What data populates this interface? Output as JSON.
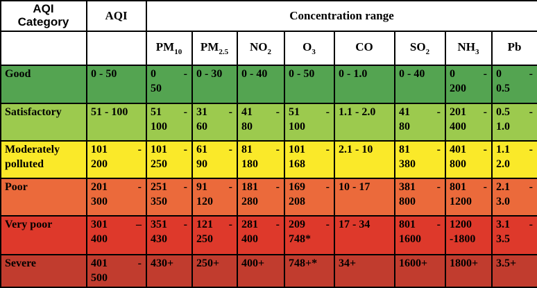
{
  "table": {
    "header": {
      "aqi_category": "AQI\nCategory",
      "aqi": "AQI",
      "concentration_range": "Concentration range"
    },
    "pollutants": [
      {
        "base": "PM",
        "sub": "10"
      },
      {
        "base": "PM",
        "sub": "2.5"
      },
      {
        "base": "NO",
        "sub": "2"
      },
      {
        "base": "O",
        "sub": "3"
      },
      {
        "base": "CO",
        "sub": ""
      },
      {
        "base": "SO",
        "sub": "2"
      },
      {
        "base": "NH",
        "sub": "3"
      },
      {
        "base": "Pb",
        "sub": ""
      }
    ],
    "column_keys": [
      "aqi",
      "pm10",
      "pm2-5",
      "no2",
      "o3",
      "co",
      "so2",
      "nh3",
      "pb"
    ],
    "rows": [
      {
        "category": "Good",
        "color": "#54a451",
        "cells": [
          "0 - 50",
          "0 -\n50",
          "0 - 30",
          "0 - 40",
          "0 - 50",
          "0 - 1.0",
          "0 - 40",
          "0 -\n200",
          "0 -\n0.5"
        ]
      },
      {
        "category": "Satisfactory",
        "color": "#9cca4e",
        "cells": [
          "51 - 100",
          "51 -\n100",
          "31 -\n60",
          "41 -\n80",
          "51 -\n100",
          "1.1 - 2.0",
          "41 -\n80",
          "201 -\n400",
          "0.5 -\n1.0"
        ]
      },
      {
        "category": "Moderately polluted",
        "color": "#fae929",
        "cells": [
          "101 -\n200",
          "101 -\n250",
          "61 -\n90",
          "81 -\n180",
          "101 -\n168",
          "2.1 - 10",
          "81 -\n380",
          "401 -\n800",
          "1.1 -\n2.0"
        ]
      },
      {
        "category": "Poor",
        "color": "#eb6a3b",
        "cells": [
          "201 -\n300",
          "251 -\n350",
          "91 -\n120",
          "181 -\n280",
          "169 -\n208",
          "10 - 17",
          "381 -\n800",
          "801 -\n1200",
          "2.1 -\n3.0"
        ]
      },
      {
        "category": "Very poor",
        "color": "#de392b",
        "cells": [
          "301 –\n400",
          "351 -\n430",
          "121 -\n250",
          "281 -\n400",
          "209 -\n748*",
          "17 - 34",
          "801 -\n1600",
          "1200\n-1800",
          "3.1 -\n3.5"
        ]
      },
      {
        "category": "Severe",
        "color": "#c13c2e",
        "cells": [
          "401 -\n500",
          "430+",
          "250+",
          "400+",
          "748+*",
          "34+",
          "1600+",
          "1800+",
          "3.5+"
        ]
      }
    ]
  }
}
